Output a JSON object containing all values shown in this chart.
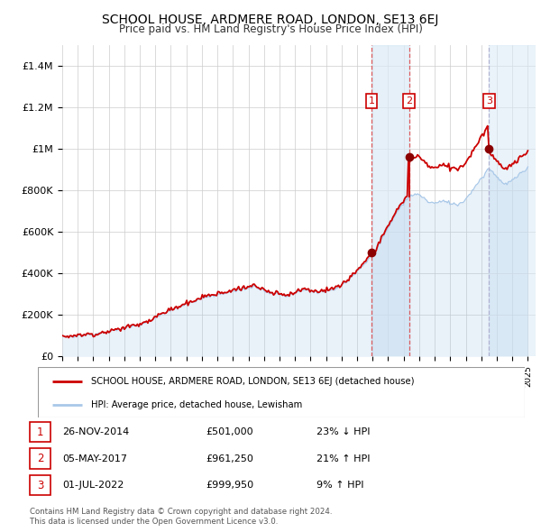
{
  "title": "SCHOOL HOUSE, ARDMERE ROAD, LONDON, SE13 6EJ",
  "subtitle": "Price paid vs. HM Land Registry's House Price Index (HPI)",
  "hpi_color": "#a8c8e8",
  "price_color": "#cc0000",
  "vline_color": "#dd4444",
  "highlight_bg": "#ddeeff",
  "yticks": [
    0,
    200000,
    400000,
    600000,
    800000,
    1000000,
    1200000,
    1400000
  ],
  "ytick_labels": [
    "£0",
    "£200K",
    "£400K",
    "£600K",
    "£800K",
    "£1M",
    "£1.2M",
    "£1.4M"
  ],
  "ylim": [
    0,
    1500000
  ],
  "sale_dates": [
    2014.92,
    2017.34,
    2022.5
  ],
  "sale_prices": [
    501000,
    961250,
    999950
  ],
  "sale_dates_str": [
    "26-NOV-2014",
    "05-MAY-2017",
    "01-JUL-2022"
  ],
  "sale_prices_str": [
    "£501,000",
    "£961,250",
    "£999,950"
  ],
  "sale_hpi_str": [
    "23% ↓ HPI",
    "21% ↑ HPI",
    "9% ↑ HPI"
  ],
  "legend_line1": "SCHOOL HOUSE, ARDMERE ROAD, LONDON, SE13 6EJ (detached house)",
  "legend_line2": "HPI: Average price, detached house, Lewisham",
  "footer1": "Contains HM Land Registry data © Crown copyright and database right 2024.",
  "footer2": "This data is licensed under the Open Government Licence v3.0.",
  "xmin": 1995.0,
  "xmax": 2025.5
}
